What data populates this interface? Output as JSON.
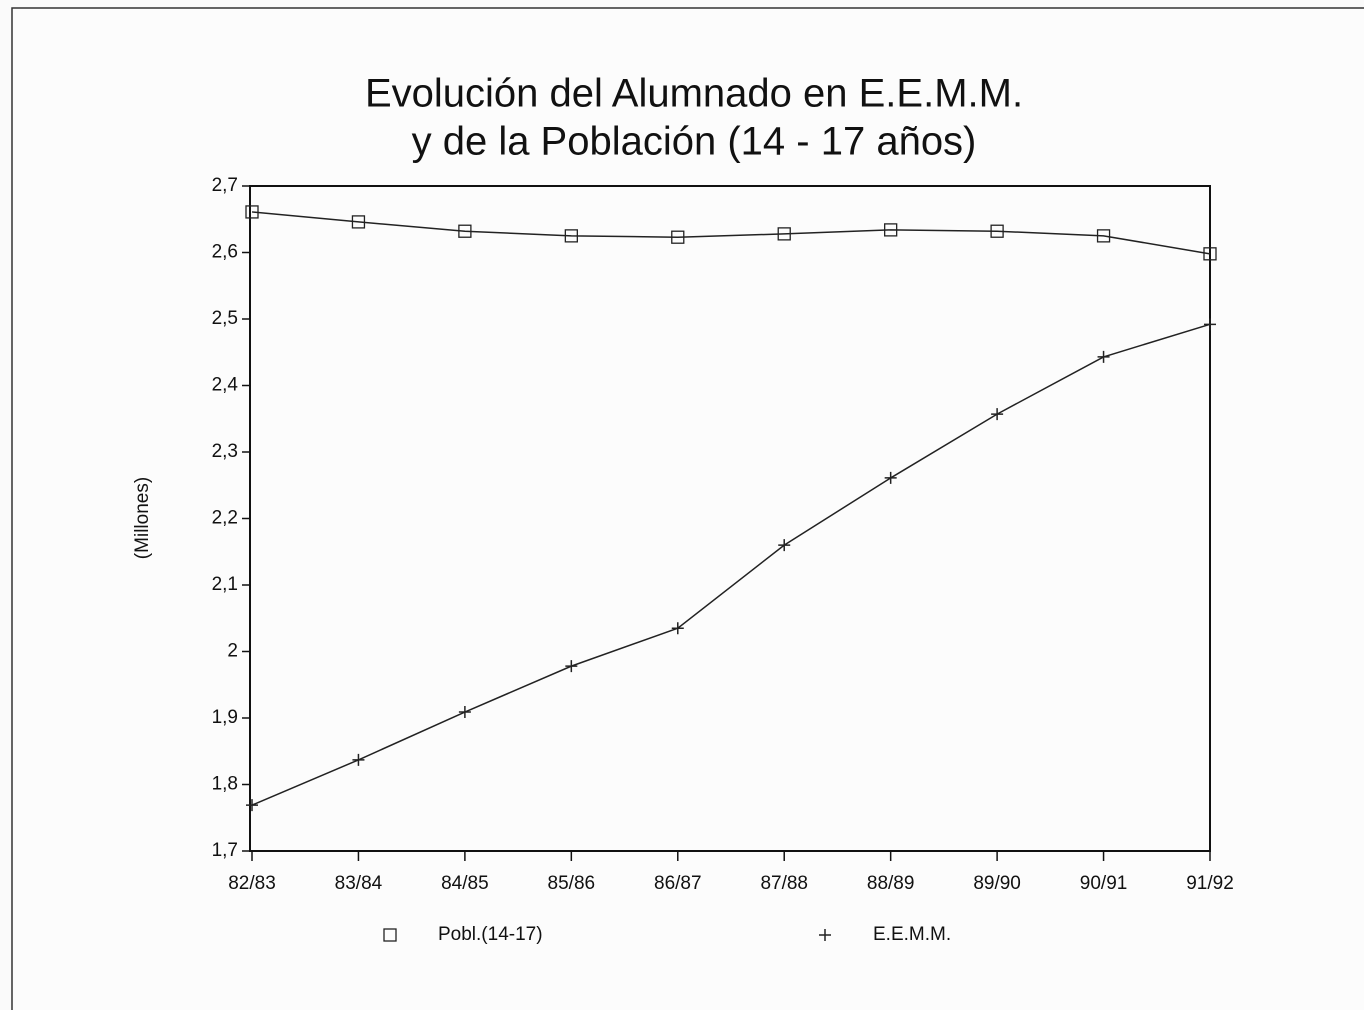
{
  "chart_data": {
    "type": "line",
    "title": [
      "Evolución del Alumnado en E.E.M.M.",
      "y de la Población (14 - 17 años)"
    ],
    "y_label": "(Millones)",
    "categories": [
      "82/83",
      "83/84",
      "84/85",
      "85/86",
      "86/87",
      "87/88",
      "88/89",
      "89/90",
      "90/91",
      "91/92"
    ],
    "series": [
      {
        "name": "Pobl.(14-17)",
        "color": "#222222",
        "marker": "square",
        "values": [
          2.661,
          2.646,
          2.632,
          2.625,
          2.623,
          2.628,
          2.634,
          2.632,
          2.625,
          2.598
        ]
      },
      {
        "name": "E.E.M.M.",
        "color": "#222222",
        "marker": "plus",
        "values": [
          1.769,
          1.837,
          1.909,
          1.978,
          2.035,
          2.16,
          2.261,
          2.357,
          2.443,
          2.492
        ]
      }
    ],
    "ylim": [
      1.7,
      2.7
    ],
    "yticks": [
      {
        "value": 1.7,
        "label": "1,7"
      },
      {
        "value": 1.8,
        "label": "1,8"
      },
      {
        "value": 1.9,
        "label": "1,9"
      },
      2,
      {
        "value": 2.1,
        "label": "2,1"
      },
      {
        "value": 2.2,
        "label": "2,2"
      },
      {
        "value": 2.3,
        "label": "2,3"
      },
      {
        "value": 2.4,
        "label": "2,4"
      },
      {
        "value": 2.5,
        "label": "2,5"
      },
      {
        "value": 2.6,
        "label": "2,6"
      },
      {
        "value": 2.7,
        "label": "2,7"
      }
    ],
    "legend": "bottom",
    "grid": false
  }
}
